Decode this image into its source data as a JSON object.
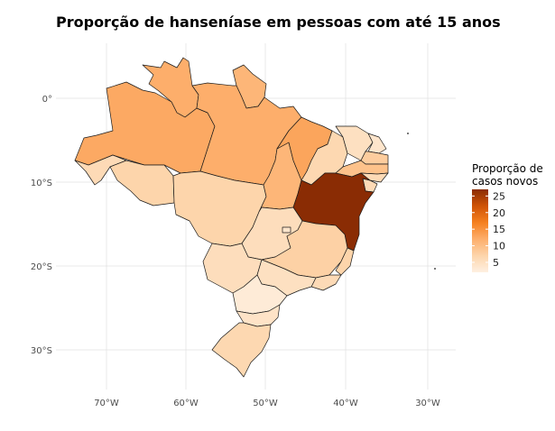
{
  "title": "Proporção de hanseníase em pessoas com até 15 anos",
  "legend": {
    "title_line1": "Proporção de",
    "title_line2": "casos novos",
    "ticks": [
      "25",
      "20",
      "15",
      "10",
      "5"
    ],
    "scale_low": "#fef0e2",
    "scale_high": "#8a2c04"
  },
  "axes": {
    "y_ticks": [
      "0°",
      "10°S",
      "20°S",
      "30°S"
    ],
    "x_ticks": [
      "70°W",
      "60°W",
      "50°W",
      "40°W",
      "30°W"
    ]
  },
  "chart_data": {
    "type": "choropleth",
    "region": "Brazil",
    "variable": "Proporção de casos novos",
    "scale_range": [
      2,
      27
    ],
    "states": [
      {
        "name": "AM",
        "value": 12.5
      },
      {
        "name": "PA",
        "value": 12
      },
      {
        "name": "RR",
        "value": 12
      },
      {
        "name": "AP",
        "value": 11
      },
      {
        "name": "MA",
        "value": 13
      },
      {
        "name": "TO",
        "value": 11
      },
      {
        "name": "AC",
        "value": 6
      },
      {
        "name": "RO",
        "value": 7
      },
      {
        "name": "MT",
        "value": 7
      },
      {
        "name": "PI",
        "value": 6.5
      },
      {
        "name": "CE",
        "value": 5
      },
      {
        "name": "RN",
        "value": 4
      },
      {
        "name": "PB",
        "value": 8
      },
      {
        "name": "PE",
        "value": 9.5
      },
      {
        "name": "AL",
        "value": 6
      },
      {
        "name": "SE",
        "value": 6
      },
      {
        "name": "BA",
        "value": 27
      },
      {
        "name": "GO",
        "value": 5.5
      },
      {
        "name": "DF",
        "value": 4
      },
      {
        "name": "MS",
        "value": 5.5
      },
      {
        "name": "MG",
        "value": 7.5
      },
      {
        "name": "ES",
        "value": 7
      },
      {
        "name": "RJ",
        "value": 6
      },
      {
        "name": "SP",
        "value": 5
      },
      {
        "name": "PR",
        "value": 3
      },
      {
        "name": "SC",
        "value": 4.5
      },
      {
        "name": "RS",
        "value": 6.5
      }
    ]
  }
}
